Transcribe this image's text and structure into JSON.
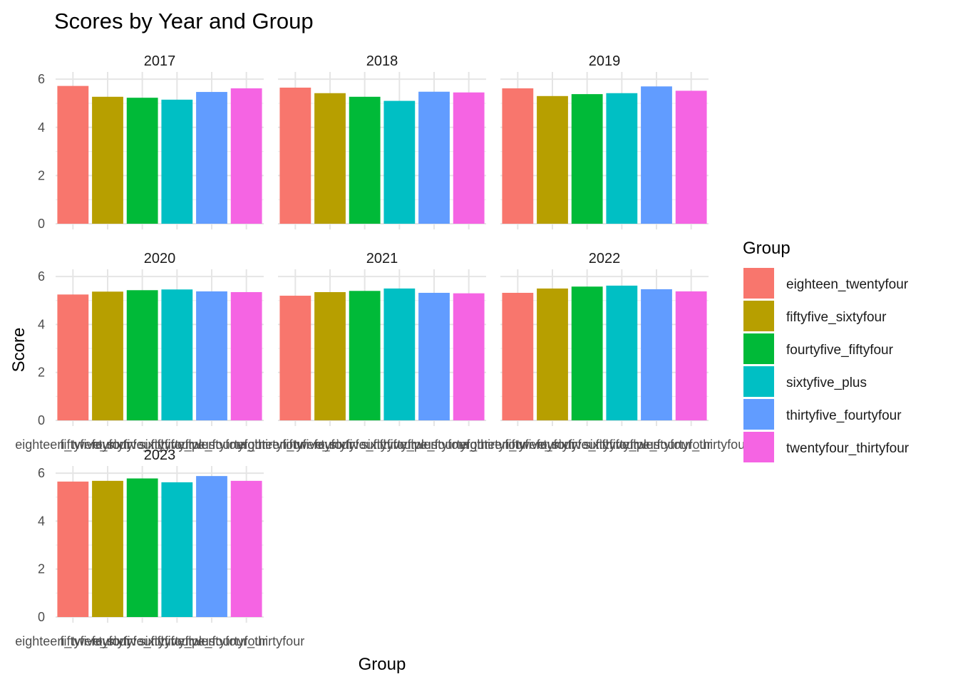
{
  "chart_data": {
    "type": "bar",
    "title": "Scores by Year and Group",
    "xlabel": "Group",
    "ylabel": "Score",
    "ylim": [
      0,
      6.3
    ],
    "y_ticks": [
      "0",
      "2",
      "4",
      "6"
    ],
    "y_tick_values": [
      0,
      2,
      4,
      6
    ],
    "grid": true,
    "legend_position": "right",
    "legend_title": "Group",
    "categories": [
      "eighteen_twentyfour",
      "fiftyfive_sixtyfour",
      "fourtyfive_fiftyfour",
      "sixtyfive_plus",
      "thirtyfive_fourtyfour",
      "twentyfour_thirtyfour"
    ],
    "colors": [
      "#F8766D",
      "#B79F00",
      "#00BA38",
      "#00BFC4",
      "#619CFF",
      "#F564E3"
    ],
    "panels": [
      {
        "year": "2017",
        "values": [
          5.72,
          5.27,
          5.23,
          5.15,
          5.47,
          5.62
        ],
        "show_x_labels": false
      },
      {
        "year": "2018",
        "values": [
          5.65,
          5.42,
          5.27,
          5.1,
          5.48,
          5.45
        ],
        "show_x_labels": false
      },
      {
        "year": "2019",
        "values": [
          5.62,
          5.3,
          5.38,
          5.42,
          5.7,
          5.52
        ],
        "show_x_labels": false
      },
      {
        "year": "2020",
        "values": [
          5.25,
          5.37,
          5.43,
          5.46,
          5.38,
          5.35
        ],
        "show_x_labels": true
      },
      {
        "year": "2021",
        "values": [
          5.2,
          5.35,
          5.4,
          5.5,
          5.32,
          5.3
        ],
        "show_x_labels": true
      },
      {
        "year": "2022",
        "values": [
          5.32,
          5.5,
          5.58,
          5.62,
          5.47,
          5.38
        ],
        "show_x_labels": true
      },
      {
        "year": "2023",
        "values": [
          5.65,
          5.68,
          5.78,
          5.62,
          5.88,
          5.68
        ],
        "show_x_labels": true
      }
    ]
  }
}
